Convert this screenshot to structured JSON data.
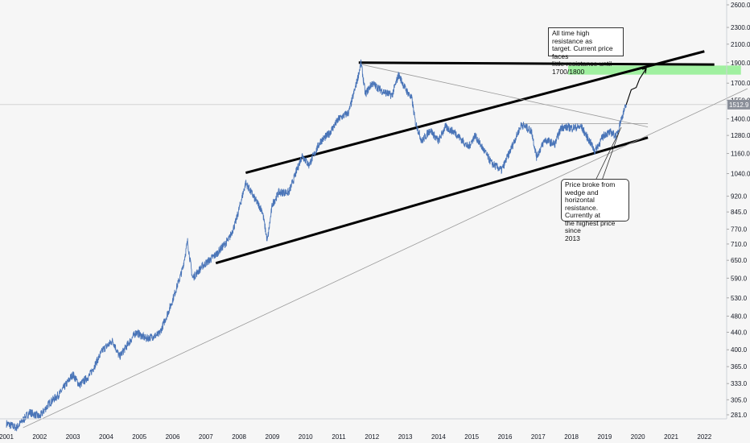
{
  "chart_data": {
    "type": "line",
    "y_scale": "log",
    "x_ticks": [
      "2001",
      "2002",
      "2003",
      "2004",
      "2005",
      "2006",
      "2007",
      "2008",
      "2009",
      "2010",
      "2011",
      "2012",
      "2013",
      "2014",
      "2015",
      "2016",
      "2017",
      "2018",
      "2019",
      "2020",
      "2021",
      "2022"
    ],
    "y_ticks": [
      2600.0,
      2300.0,
      2100.0,
      1900.0,
      1700.0,
      1550.0,
      1400.0,
      1280.0,
      1160.0,
      1040.0,
      920.0,
      845.0,
      770.0,
      710.0,
      650.0,
      590.0,
      530.0,
      480.0,
      440.0,
      400.0,
      365.0,
      333.0,
      305.0,
      281.0
    ],
    "y_tick_labels": [
      "2600.0",
      "2300.0",
      "2100.0",
      "1900.0",
      "1700.0",
      "1550.0",
      "1400.0",
      "1280.0",
      "1160.0",
      "1040.0",
      "920.0",
      "845.0",
      "770.0",
      "710.0",
      "650.0",
      "590.0",
      "530.0",
      "480.0",
      "440.0",
      "400.0",
      "365.0",
      "333.0",
      "305.0",
      "281.0"
    ],
    "ylim": [
      262,
      2800
    ],
    "xlim": [
      2000.95,
      2022.85
    ],
    "current_price": 1512.9,
    "current_price_label": "1512.9",
    "series": [
      {
        "values": [
          [
            2001.0,
            268
          ],
          [
            2001.3,
            262
          ],
          [
            2001.7,
            285
          ],
          [
            2002.0,
            278
          ],
          [
            2002.3,
            300
          ],
          [
            2002.6,
            315
          ],
          [
            2003.0,
            350
          ],
          [
            2003.2,
            330
          ],
          [
            2003.5,
            348
          ],
          [
            2003.9,
            400
          ],
          [
            2004.2,
            420
          ],
          [
            2004.4,
            385
          ],
          [
            2004.9,
            440
          ],
          [
            2005.2,
            425
          ],
          [
            2005.6,
            435
          ],
          [
            2005.95,
            510
          ],
          [
            2006.3,
            620
          ],
          [
            2006.45,
            720
          ],
          [
            2006.6,
            590
          ],
          [
            2006.9,
            630
          ],
          [
            2007.3,
            670
          ],
          [
            2007.7,
            730
          ],
          [
            2007.9,
            800
          ],
          [
            2008.2,
            990
          ],
          [
            2008.5,
            900
          ],
          [
            2008.7,
            850
          ],
          [
            2008.85,
            720
          ],
          [
            2009.0,
            880
          ],
          [
            2009.2,
            940
          ],
          [
            2009.5,
            940
          ],
          [
            2009.9,
            1150
          ],
          [
            2010.1,
            1090
          ],
          [
            2010.45,
            1240
          ],
          [
            2010.7,
            1290
          ],
          [
            2011.0,
            1400
          ],
          [
            2011.3,
            1450
          ],
          [
            2011.55,
            1720
          ],
          [
            2011.67,
            1900
          ],
          [
            2011.8,
            1600
          ],
          [
            2012.0,
            1700
          ],
          [
            2012.3,
            1630
          ],
          [
            2012.6,
            1590
          ],
          [
            2012.8,
            1780
          ],
          [
            2013.0,
            1650
          ],
          [
            2013.2,
            1560
          ],
          [
            2013.3,
            1380
          ],
          [
            2013.5,
            1240
          ],
          [
            2013.75,
            1320
          ],
          [
            2014.0,
            1240
          ],
          [
            2014.2,
            1340
          ],
          [
            2014.5,
            1300
          ],
          [
            2014.9,
            1200
          ],
          [
            2015.1,
            1280
          ],
          [
            2015.6,
            1100
          ],
          [
            2015.9,
            1060
          ],
          [
            2016.1,
            1150
          ],
          [
            2016.5,
            1360
          ],
          [
            2016.8,
            1310
          ],
          [
            2016.95,
            1140
          ],
          [
            2017.2,
            1250
          ],
          [
            2017.5,
            1220
          ],
          [
            2017.7,
            1340
          ],
          [
            2018.0,
            1335
          ],
          [
            2018.3,
            1340
          ],
          [
            2018.6,
            1220
          ],
          [
            2018.7,
            1175
          ],
          [
            2019.0,
            1290
          ],
          [
            2019.2,
            1300
          ],
          [
            2019.35,
            1275
          ],
          [
            2019.5,
            1400
          ],
          [
            2019.65,
            1512.9
          ]
        ]
      }
    ],
    "annotations": [
      {
        "text": "All time high resistance as\ntarget. Current price faces\nlittle resistance until\n1700/1800"
      },
      {
        "text": "Price broke from\nwedge and horizontal\nresistance. Currently at\nthe highest price since\n2013"
      }
    ],
    "projection": [
      [
        2019.65,
        1512.9
      ],
      [
        2019.8,
        1640
      ],
      [
        2019.95,
        1660
      ],
      [
        2020.05,
        1740
      ],
      [
        2020.25,
        1840
      ]
    ],
    "target_zone": {
      "x": [
        2017.9,
        2023.1
      ],
      "y": [
        1780,
        1870
      ],
      "color": "#90ee90"
    },
    "trend_lines": [
      {
        "style": "thick",
        "points": [
          [
            2011.6,
            1900
          ],
          [
            2022.3,
            1880
          ]
        ]
      },
      {
        "style": "thick",
        "points": [
          [
            2008.2,
            1045
          ],
          [
            2022.0,
            2020
          ]
        ]
      },
      {
        "style": "thick",
        "points": [
          [
            2007.3,
            640
          ],
          [
            2020.3,
            1265
          ]
        ]
      },
      {
        "style": "thin",
        "points": [
          [
            2001.5,
            262
          ],
          [
            2023.3,
            1650
          ]
        ]
      },
      {
        "style": "thin",
        "points": [
          [
            2011.7,
            1880
          ],
          [
            2020.3,
            1340
          ]
        ]
      },
      {
        "style": "thin",
        "points": [
          [
            2016.5,
            1365
          ],
          [
            2020.3,
            1365
          ]
        ]
      }
    ],
    "grid": false,
    "colors": {
      "series": "#4a75b8",
      "thick_line": "#000000",
      "thin_line": "#999999",
      "target_zone": "#90ee90",
      "price_tag": "#8a8f99"
    }
  }
}
